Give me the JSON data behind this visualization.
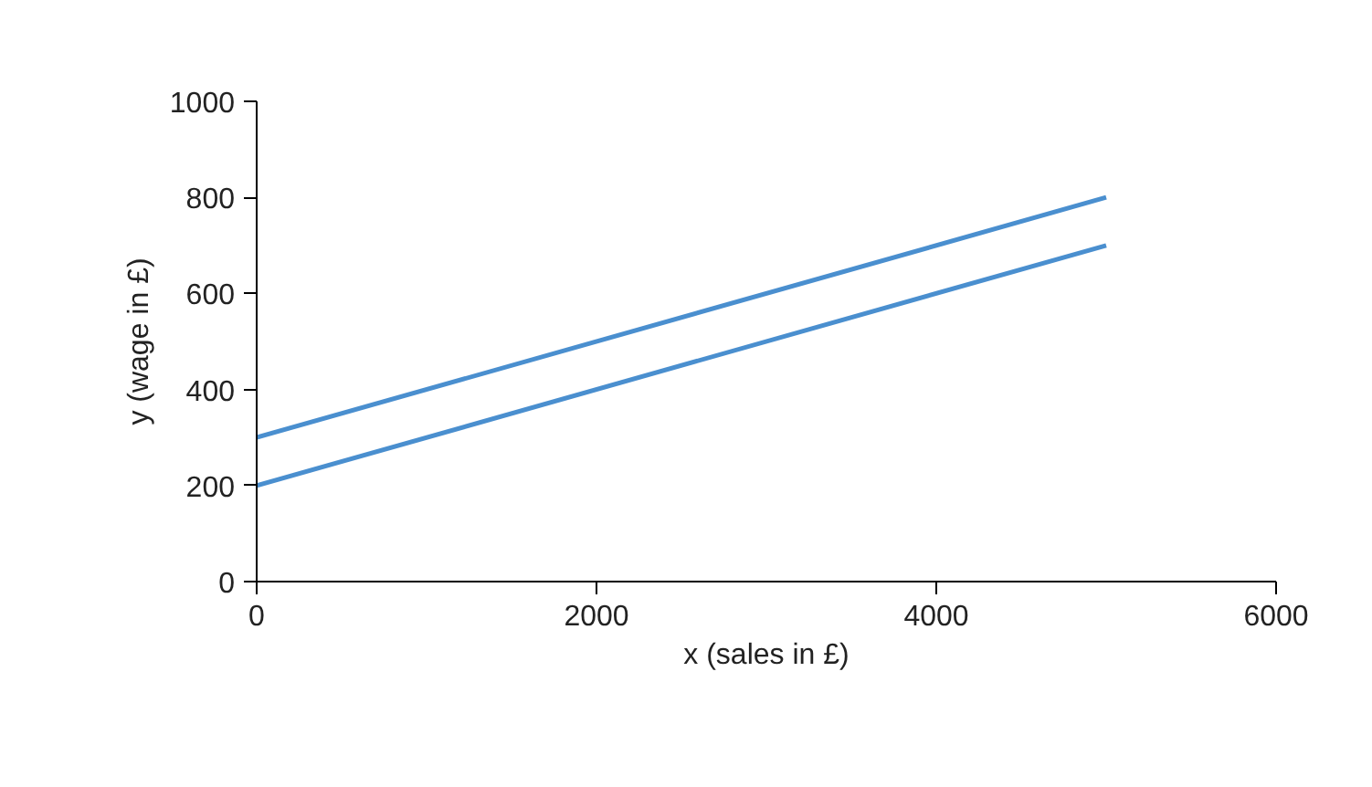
{
  "chart_data": {
    "type": "line",
    "xlabel": "x (sales in £)",
    "ylabel": "y (wage in £)",
    "x": [
      0,
      5000
    ],
    "series": [
      {
        "color": "#4a8fcf",
        "values": [
          300,
          800
        ]
      },
      {
        "color": "#4a8fcf",
        "values": [
          200,
          700
        ]
      }
    ],
    "xlim": [
      0,
      6000
    ],
    "xticks": [
      0,
      2000,
      4000,
      6000
    ],
    "ylim": [
      0,
      1000
    ],
    "yticks": [
      0,
      200,
      400,
      600,
      800,
      1000
    ],
    "grid": false,
    "marker": "none",
    "line_style": "solid"
  }
}
